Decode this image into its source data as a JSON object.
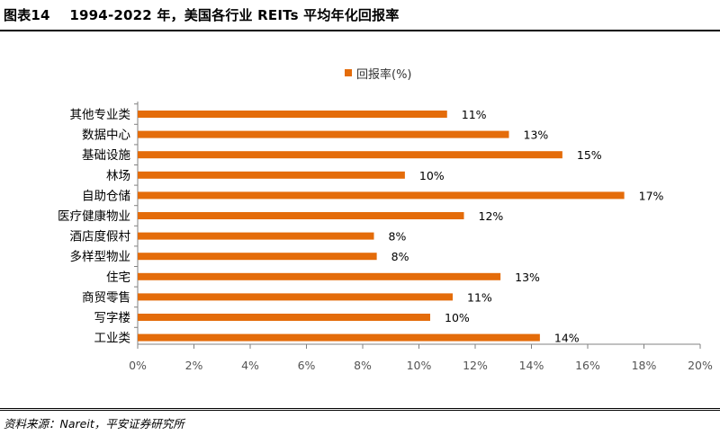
{
  "figure_label": "图表14",
  "title": "1994-2022 年，美国各行业 REITs 平均年化回报率",
  "source": "资料来源：Nareit，平安证券研究所",
  "colors": {
    "bar": "#E46C0A",
    "axis": "#808080"
  },
  "chart_data": {
    "type": "bar",
    "orientation": "horizontal",
    "categories": [
      "其他专业类",
      "数据中心",
      "基础设施",
      "林场",
      "自助仓储",
      "医疗健康物业",
      "酒店度假村",
      "多样型物业",
      "住宅",
      "商贸零售",
      "写字楼",
      "工业类"
    ],
    "series": [
      {
        "name": "回报率(%)",
        "values": [
          11,
          13,
          15,
          10,
          17,
          12,
          8,
          8,
          13,
          11,
          10,
          14
        ]
      }
    ],
    "value_precise": [
      11.0,
      13.2,
      15.1,
      9.5,
      17.3,
      11.6,
      8.4,
      8.5,
      12.9,
      11.2,
      10.4,
      14.3
    ],
    "data_labels": [
      "11%",
      "13%",
      "15%",
      "10%",
      "17%",
      "12%",
      "8%",
      "8%",
      "13%",
      "11%",
      "10%",
      "14%"
    ],
    "xlim": [
      0,
      20
    ],
    "xticks": [
      "0%",
      "2%",
      "4%",
      "6%",
      "8%",
      "10%",
      "12%",
      "14%",
      "16%",
      "18%",
      "20%"
    ],
    "legend": "top-center",
    "grid": false
  }
}
